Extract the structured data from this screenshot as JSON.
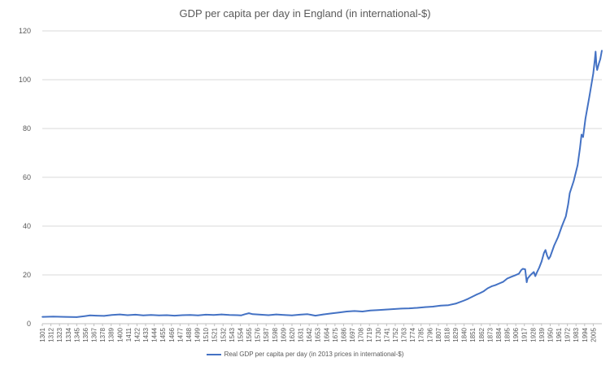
{
  "chart_data": {
    "type": "line",
    "title": "GDP per capita per day in England (in international-$)",
    "xlabel": "",
    "ylabel": "",
    "xlim": [
      1301,
      2016
    ],
    "ylim": [
      0,
      120
    ],
    "y_ticks": [
      0,
      20,
      40,
      60,
      80,
      100,
      120
    ],
    "x_tick_labels": [
      "1301",
      "1312",
      "1323",
      "1334",
      "1345",
      "1356",
      "1367",
      "1378",
      "1389",
      "1400",
      "1411",
      "1422",
      "1433",
      "1444",
      "1455",
      "1466",
      "1477",
      "1488",
      "1499",
      "1510",
      "1521",
      "1532",
      "1543",
      "1554",
      "1565",
      "1576",
      "1587",
      "1598",
      "1609",
      "1620",
      "1631",
      "1642",
      "1653",
      "1664",
      "1675",
      "1686",
      "1697",
      "1708",
      "1719",
      "1730",
      "1741",
      "1752",
      "1763",
      "1774",
      "1785",
      "1796",
      "1807",
      "1818",
      "1829",
      "1840",
      "1851",
      "1862",
      "1873",
      "1884",
      "1895",
      "1906",
      "1917",
      "1928",
      "1939",
      "1950",
      "1961",
      "1972",
      "1983",
      "1994",
      "2005"
    ],
    "grid": "horizontal",
    "legend_position": "bottom",
    "series": [
      {
        "name": "Real GDP per capita per day (in 2013 prices in international-$)",
        "color": "#4472C4",
        "x": [
          1301,
          1315,
          1330,
          1345,
          1355,
          1362,
          1370,
          1380,
          1390,
          1400,
          1410,
          1420,
          1430,
          1440,
          1450,
          1460,
          1470,
          1480,
          1490,
          1500,
          1510,
          1520,
          1530,
          1540,
          1550,
          1555,
          1560,
          1565,
          1570,
          1580,
          1590,
          1600,
          1610,
          1620,
          1630,
          1640,
          1650,
          1660,
          1670,
          1680,
          1690,
          1700,
          1710,
          1720,
          1730,
          1740,
          1750,
          1760,
          1770,
          1780,
          1790,
          1800,
          1810,
          1820,
          1830,
          1840,
          1845,
          1850,
          1855,
          1860,
          1865,
          1870,
          1875,
          1880,
          1885,
          1890,
          1895,
          1900,
          1905,
          1910,
          1913,
          1915,
          1918,
          1919,
          1920,
          1921,
          1925,
          1929,
          1931,
          1933,
          1936,
          1939,
          1942,
          1944,
          1946,
          1948,
          1950,
          1955,
          1960,
          1965,
          1970,
          1973,
          1975,
          1980,
          1985,
          1988,
          1990,
          1992,
          1995,
          2000,
          2005,
          2007,
          2008,
          2009,
          2010,
          2012,
          2014,
          2016
        ],
        "y": [
          2.8,
          2.9,
          2.8,
          2.7,
          3.1,
          3.4,
          3.3,
          3.2,
          3.6,
          3.8,
          3.5,
          3.7,
          3.4,
          3.6,
          3.4,
          3.5,
          3.3,
          3.5,
          3.6,
          3.4,
          3.7,
          3.6,
          3.8,
          3.6,
          3.5,
          3.4,
          3.9,
          4.3,
          3.9,
          3.7,
          3.5,
          3.8,
          3.6,
          3.4,
          3.7,
          3.9,
          3.3,
          3.8,
          4.2,
          4.6,
          5.0,
          5.2,
          5.0,
          5.4,
          5.6,
          5.8,
          6.0,
          6.2,
          6.3,
          6.5,
          6.8,
          7.0,
          7.4,
          7.6,
          8.3,
          9.5,
          10.2,
          11.0,
          11.8,
          12.5,
          13.3,
          14.5,
          15.3,
          15.8,
          16.5,
          17.2,
          18.5,
          19.2,
          19.8,
          20.5,
          22.0,
          22.5,
          22.3,
          19.5,
          17.0,
          18.5,
          20.0,
          21.2,
          19.5,
          21.0,
          23.0,
          25.5,
          29.0,
          30.2,
          28.0,
          26.5,
          27.5,
          32.0,
          35.5,
          40.0,
          44.0,
          49.0,
          53.5,
          58.5,
          65.0,
          72.0,
          77.5,
          76.5,
          84.0,
          93.0,
          102.5,
          108.0,
          111.5,
          106.0,
          104.0,
          106.5,
          108.5,
          112.0
        ]
      }
    ]
  }
}
